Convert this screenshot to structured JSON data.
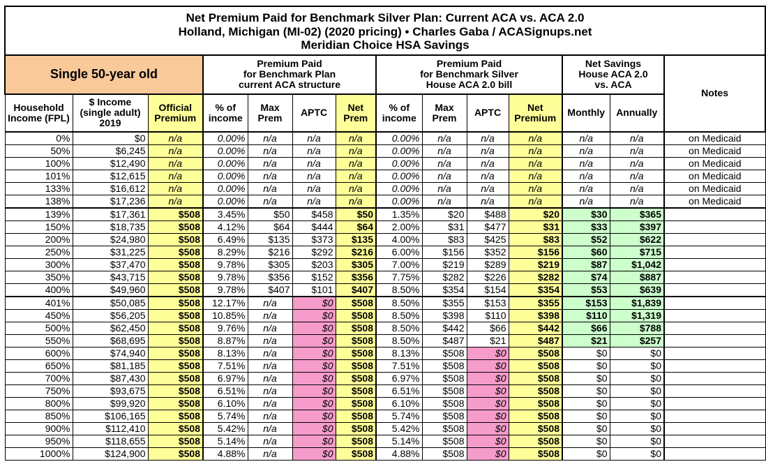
{
  "title": [
    "Net Premium Paid for Benchmark Silver Plan: Current ACA vs. ACA 2.0",
    "Holland, Michigan (MI-02) (2020 pricing) • Charles Gaba / ACASignups.net",
    "Meridian Choice HSA Savings"
  ],
  "groups": {
    "profile": "Single 50-year old",
    "current": "Premium Paid\nfor Benchmark Plan\ncurrent ACA structure",
    "house": "Premium Paid\nfor Benchmark Silver\nHouse ACA 2.0 bill",
    "savings": "Net Savings\nHouse ACA 2.0\nvs. ACA",
    "notes": "Notes"
  },
  "columns": [
    "Household Income (FPL)",
    "$ Income (single adult) 2019",
    "Official Premium",
    "% of income",
    "Max Prem",
    "APTC",
    "Net Prem",
    "% of income",
    "Max Prem",
    "APTC",
    "Net Premium",
    "Monthly",
    "Annually"
  ],
  "colors": {
    "orange": "#f9c99a",
    "yellow": "#ffff99",
    "pink": "#f59ccb",
    "green": "#ccffcc"
  },
  "rows": [
    [
      "0%",
      "$0",
      "n/a",
      "0.00%",
      "n/a",
      "n/a",
      "n/a",
      "0.00%",
      "n/a",
      "n/a",
      "n/a",
      "n/a",
      "n/a",
      "on Medicaid"
    ],
    [
      "50%",
      "$6,245",
      "n/a",
      "0.00%",
      "n/a",
      "n/a",
      "n/a",
      "0.00%",
      "n/a",
      "n/a",
      "n/a",
      "n/a",
      "n/a",
      "on Medicaid"
    ],
    [
      "100%",
      "$12,490",
      "n/a",
      "0.00%",
      "n/a",
      "n/a",
      "n/a",
      "0.00%",
      "n/a",
      "n/a",
      "n/a",
      "n/a",
      "n/a",
      "on Medicaid"
    ],
    [
      "101%",
      "$12,615",
      "n/a",
      "0.00%",
      "n/a",
      "n/a",
      "n/a",
      "0.00%",
      "n/a",
      "n/a",
      "n/a",
      "n/a",
      "n/a",
      "on Medicaid"
    ],
    [
      "133%",
      "$16,612",
      "n/a",
      "0.00%",
      "n/a",
      "n/a",
      "n/a",
      "0.00%",
      "n/a",
      "n/a",
      "n/a",
      "n/a",
      "n/a",
      "on Medicaid"
    ],
    [
      "138%",
      "$17,236",
      "n/a",
      "0.00%",
      "n/a",
      "n/a",
      "n/a",
      "0.00%",
      "n/a",
      "n/a",
      "n/a",
      "n/a",
      "n/a",
      "on Medicaid"
    ],
    [
      "139%",
      "$17,361",
      "$508",
      "3.45%",
      "$50",
      "$458",
      "$50",
      "1.35%",
      "$20",
      "$488",
      "$20",
      "$30",
      "$365",
      ""
    ],
    [
      "150%",
      "$18,735",
      "$508",
      "4.12%",
      "$64",
      "$444",
      "$64",
      "2.00%",
      "$31",
      "$477",
      "$31",
      "$33",
      "$397",
      ""
    ],
    [
      "200%",
      "$24,980",
      "$508",
      "6.49%",
      "$135",
      "$373",
      "$135",
      "4.00%",
      "$83",
      "$425",
      "$83",
      "$52",
      "$622",
      ""
    ],
    [
      "250%",
      "$31,225",
      "$508",
      "8.29%",
      "$216",
      "$292",
      "$216",
      "6.00%",
      "$156",
      "$352",
      "$156",
      "$60",
      "$715",
      ""
    ],
    [
      "300%",
      "$37,470",
      "$508",
      "9.78%",
      "$305",
      "$203",
      "$305",
      "7.00%",
      "$219",
      "$289",
      "$219",
      "$87",
      "$1,042",
      ""
    ],
    [
      "350%",
      "$43,715",
      "$508",
      "9.78%",
      "$356",
      "$152",
      "$356",
      "7.75%",
      "$282",
      "$226",
      "$282",
      "$74",
      "$887",
      ""
    ],
    [
      "400%",
      "$49,960",
      "$508",
      "9.78%",
      "$407",
      "$101",
      "$407",
      "8.50%",
      "$354",
      "$154",
      "$354",
      "$53",
      "$639",
      ""
    ],
    [
      "401%",
      "$50,085",
      "$508",
      "12.17%",
      "n/a",
      "$0",
      "$508",
      "8.50%",
      "$355",
      "$153",
      "$355",
      "$153",
      "$1,839",
      ""
    ],
    [
      "450%",
      "$56,205",
      "$508",
      "10.85%",
      "n/a",
      "$0",
      "$508",
      "8.50%",
      "$398",
      "$110",
      "$398",
      "$110",
      "$1,319",
      ""
    ],
    [
      "500%",
      "$62,450",
      "$508",
      "9.76%",
      "n/a",
      "$0",
      "$508",
      "8.50%",
      "$442",
      "$66",
      "$442",
      "$66",
      "$788",
      ""
    ],
    [
      "550%",
      "$68,695",
      "$508",
      "8.87%",
      "n/a",
      "$0",
      "$508",
      "8.50%",
      "$487",
      "$21",
      "$487",
      "$21",
      "$257",
      ""
    ],
    [
      "600%",
      "$74,940",
      "$508",
      "8.13%",
      "n/a",
      "$0",
      "$508",
      "8.13%",
      "$508",
      "$0",
      "$508",
      "$0",
      "$0",
      ""
    ],
    [
      "650%",
      "$81,185",
      "$508",
      "7.51%",
      "n/a",
      "$0",
      "$508",
      "7.51%",
      "$508",
      "$0",
      "$508",
      "$0",
      "$0",
      ""
    ],
    [
      "700%",
      "$87,430",
      "$508",
      "6.97%",
      "n/a",
      "$0",
      "$508",
      "6.97%",
      "$508",
      "$0",
      "$508",
      "$0",
      "$0",
      ""
    ],
    [
      "750%",
      "$93,675",
      "$508",
      "6.51%",
      "n/a",
      "$0",
      "$508",
      "6.51%",
      "$508",
      "$0",
      "$508",
      "$0",
      "$0",
      ""
    ],
    [
      "800%",
      "$99,920",
      "$508",
      "6.10%",
      "n/a",
      "$0",
      "$508",
      "6.10%",
      "$508",
      "$0",
      "$508",
      "$0",
      "$0",
      ""
    ],
    [
      "850%",
      "$106,165",
      "$508",
      "5.74%",
      "n/a",
      "$0",
      "$508",
      "5.74%",
      "$508",
      "$0",
      "$508",
      "$0",
      "$0",
      ""
    ],
    [
      "900%",
      "$112,410",
      "$508",
      "5.42%",
      "n/a",
      "$0",
      "$508",
      "5.42%",
      "$508",
      "$0",
      "$508",
      "$0",
      "$0",
      ""
    ],
    [
      "950%",
      "$118,655",
      "$508",
      "5.14%",
      "n/a",
      "$0",
      "$508",
      "5.14%",
      "$508",
      "$0",
      "$508",
      "$0",
      "$0",
      ""
    ],
    [
      "1000%",
      "$124,900",
      "$508",
      "4.88%",
      "n/a",
      "$0",
      "$508",
      "4.88%",
      "$508",
      "$0",
      "$508",
      "$0",
      "$0",
      ""
    ]
  ]
}
